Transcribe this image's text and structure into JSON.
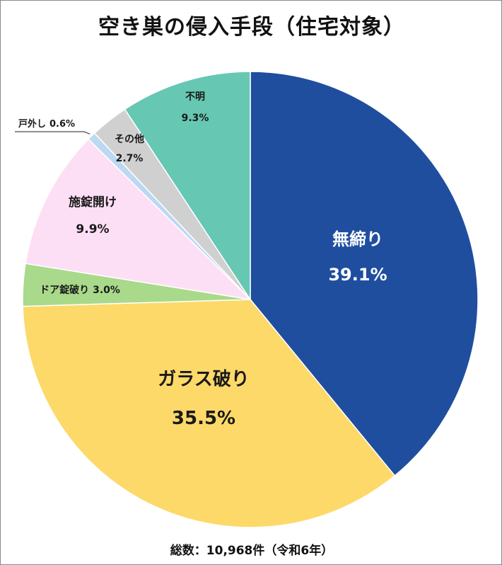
{
  "chart_data": {
    "type": "pie",
    "title": "空き巣の侵入手段（住宅対象）",
    "footer": "総数：10,968件（令和6年）",
    "slices": [
      {
        "name": "無締り",
        "value": 39.1,
        "value_label": "39.1%",
        "color": "#1f4e9f"
      },
      {
        "name": "ガラス破り",
        "value": 35.5,
        "value_label": "35.5%",
        "color": "#fdd96a"
      },
      {
        "name": "ドア錠破り",
        "value": 3.0,
        "value_label": "3.0%",
        "color": "#a9d98a"
      },
      {
        "name": "施錠開け",
        "value": 9.9,
        "value_label": "9.9%",
        "color": "#fddff5"
      },
      {
        "name": "戸外し",
        "value": 0.6,
        "value_label": "0.6%",
        "color": "#bcd8f2"
      },
      {
        "name": "その他",
        "value": 2.7,
        "value_label": "2.7%",
        "color": "#d0d0d0"
      },
      {
        "name": "不明",
        "value": 9.3,
        "value_label": "9.3%",
        "color": "#66c7b3"
      }
    ]
  }
}
